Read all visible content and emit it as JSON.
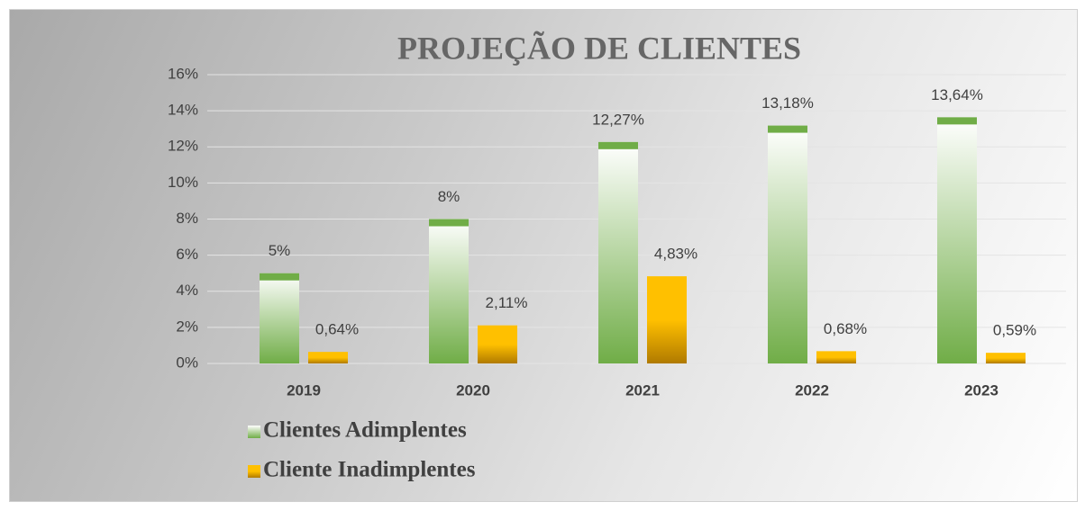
{
  "chart_data": {
    "type": "bar",
    "title": "PROJEÇÃO DE CLIENTES",
    "categories": [
      "2019",
      "2020",
      "2021",
      "2022",
      "2023"
    ],
    "series": [
      {
        "name": "Clientes Adimplentes",
        "color": "#70ad47",
        "values": [
          5,
          8,
          12.27,
          13.18,
          13.64
        ],
        "value_labels": [
          "5%",
          "8%",
          "12,27%",
          "13,18%",
          "13,64%"
        ]
      },
      {
        "name": "Cliente Inadimplentes",
        "color": "#ffc000",
        "values": [
          0.64,
          2.11,
          4.83,
          0.68,
          0.59
        ],
        "value_labels": [
          "0,64%",
          "2,11%",
          "4,83%",
          "0,68%",
          "0,59%"
        ]
      }
    ],
    "ylim": [
      0,
      16
    ],
    "yticks": [
      {
        "value": 0,
        "label": "0%"
      },
      {
        "value": 2,
        "label": "2%"
      },
      {
        "value": 4,
        "label": "4%"
      },
      {
        "value": 6,
        "label": "6%"
      },
      {
        "value": 8,
        "label": "8%"
      },
      {
        "value": 10,
        "label": "10%"
      },
      {
        "value": 12,
        "label": "12%"
      },
      {
        "value": 14,
        "label": "14%"
      },
      {
        "value": 16,
        "label": "16%"
      }
    ],
    "grid": true,
    "legend": "bottom-left"
  }
}
